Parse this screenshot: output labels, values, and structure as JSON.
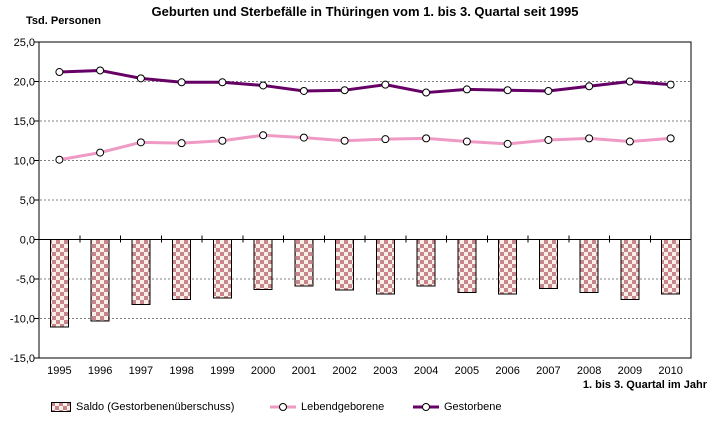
{
  "colors": {
    "saldo_pattern_dark": "#c9858c",
    "saldo_pattern_light": "#f9f1e8",
    "bar_border": "#000000",
    "lebendgeborene": "#ee9ac4",
    "gestorbene": "#660066",
    "marker_fill": "#ffffff",
    "marker_border": "#000000",
    "grid": "#808080",
    "axis": "#000000",
    "text": "#000000"
  },
  "chart_data": {
    "type": "mixed",
    "title": "Geburten und Sterbefälle in Thüringen vom 1. bis 3. Quartal seit 1995",
    "ylabel": "Tsd. Personen",
    "xlabel": "1. bis 3. Quartal im Jahr",
    "categories": [
      "1995",
      "1996",
      "1997",
      "1998",
      "1999",
      "2000",
      "2001",
      "2002",
      "2003",
      "2004",
      "2005",
      "2006",
      "2007",
      "2008",
      "2009",
      "2010"
    ],
    "series": [
      {
        "name": "Saldo (Gestorbenenüberschuss)",
        "key": "saldo",
        "type": "bar",
        "values": [
          -11.1,
          -10.3,
          -8.2,
          -7.6,
          -7.4,
          -6.3,
          -5.9,
          -6.4,
          -6.9,
          -5.9,
          -6.7,
          -6.9,
          -6.2,
          -6.7,
          -7.6,
          -6.9
        ]
      },
      {
        "name": "Lebendgeborene",
        "key": "lebendgeborene",
        "type": "line",
        "values": [
          10.1,
          11.0,
          12.3,
          12.2,
          12.5,
          13.2,
          12.9,
          12.5,
          12.7,
          12.8,
          12.4,
          12.1,
          12.6,
          12.8,
          12.4,
          12.8
        ]
      },
      {
        "name": "Gestorbene",
        "key": "gestorbene",
        "type": "line",
        "values": [
          21.2,
          21.4,
          20.4,
          19.9,
          19.9,
          19.5,
          18.8,
          18.9,
          19.6,
          18.6,
          19.0,
          18.9,
          18.8,
          19.4,
          20.0,
          19.6
        ]
      }
    ],
    "ylim": [
      -15,
      25
    ],
    "ytick_step": 5,
    "ytick_labels": [
      "25,0",
      "20,0",
      "15,0",
      "10,0",
      "5,0",
      "0,0",
      "-5,0",
      "-10,0",
      "-15,0"
    ],
    "gridline_values": [
      20,
      15,
      10,
      5,
      -5,
      -10
    ],
    "grid": true,
    "legend_position": "bottom"
  }
}
